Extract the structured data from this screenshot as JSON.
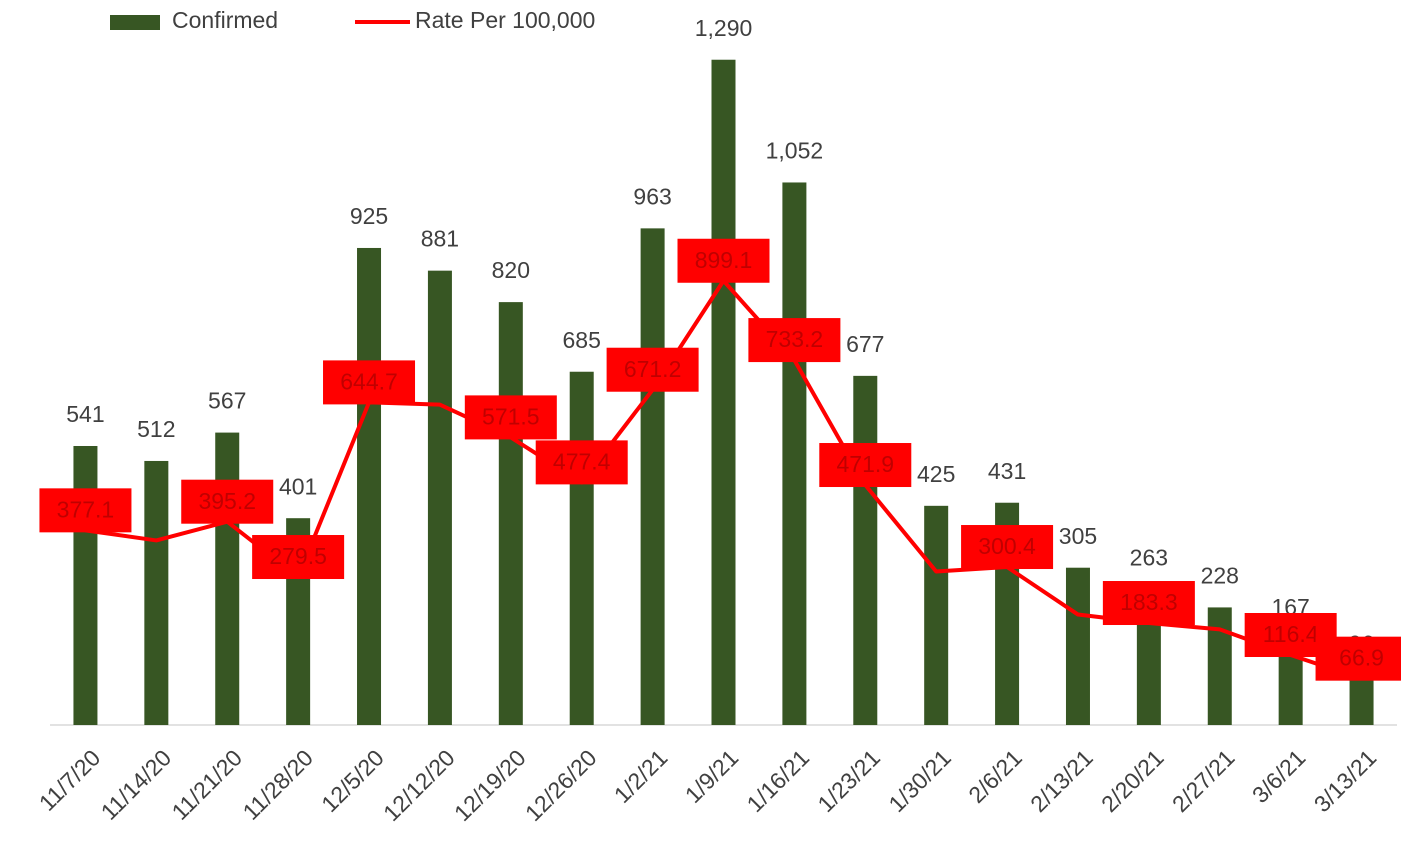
{
  "chart_data": {
    "type": "bar",
    "categories": [
      "11/7/20",
      "11/14/20",
      "11/21/20",
      "11/28/20",
      "12/5/20",
      "12/12/20",
      "12/19/20",
      "12/26/20",
      "1/2/21",
      "1/9/21",
      "1/16/21",
      "1/23/21",
      "1/30/21",
      "2/6/21",
      "2/13/21",
      "2/20/21",
      "2/27/21",
      "3/6/21",
      "3/13/21"
    ],
    "series": [
      {
        "name": "Confirmed",
        "type": "bar",
        "color": "#375623",
        "values": [
          541,
          512,
          567,
          401,
          925,
          881,
          820,
          685,
          963,
          1290,
          1052,
          677,
          425,
          431,
          305,
          263,
          228,
          167,
          96
        ],
        "value_labels": [
          "541",
          "512",
          "567",
          "401",
          "925",
          "881",
          "820",
          "685",
          "963",
          "1,290",
          "1,052",
          "677",
          "425",
          "431",
          "305",
          "263",
          "228",
          "167",
          "96"
        ]
      },
      {
        "name": "Rate Per 100,000",
        "type": "line",
        "axis": "y2",
        "color": "#ff0000",
        "values": [
          377.1,
          356,
          395.2,
          279.5,
          644.7,
          640,
          571.5,
          477.4,
          671.2,
          899.1,
          733.2,
          471.9,
          291,
          300.4,
          201,
          183.3,
          170,
          116.4,
          66.9
        ],
        "value_labels": [
          "377.1",
          null,
          "395.2",
          "279.5",
          "644.7",
          null,
          "571.5",
          "477.4",
          "671.2",
          "899.1",
          "733.2",
          "471.9",
          null,
          "300.4",
          null,
          "183.3",
          null,
          "116.4",
          "66.9"
        ]
      }
    ],
    "ylim": [
      0,
      1400
    ],
    "y2lim": [
      -30,
      1480
    ],
    "legend": "top-left"
  }
}
